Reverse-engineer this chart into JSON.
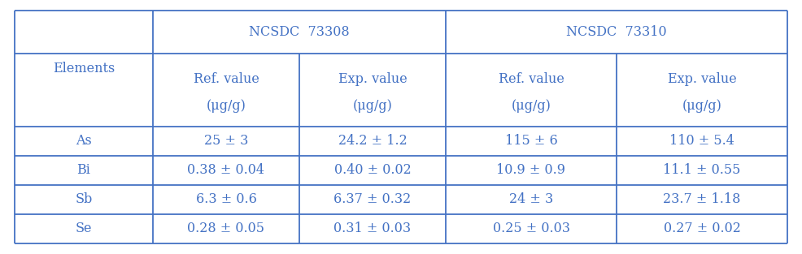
{
  "ncsdc1": "NCSDC  73308",
  "ncsdc2": "NCSDC  73310",
  "col_labels": [
    "Elements",
    "Ref. value",
    "Exp. value",
    "Ref. value",
    "Exp. value"
  ],
  "unit": "(μg/g)",
  "rows": [
    [
      "As",
      "25 ± 3",
      "24.2 ± 1.2",
      "115 ± 6",
      "110 ± 5.4"
    ],
    [
      "Bi",
      "0.38 ± 0.04",
      "0.40 ± 0.02",
      "10.9 ± 0.9",
      "11.1 ± 0.55"
    ],
    [
      "Sb",
      "6.3 ± 0.6",
      "6.37 ± 0.32",
      "24 ± 3",
      "23.7 ± 1.18"
    ],
    [
      "Se",
      "0.28 ± 0.05",
      "0.31 ± 0.03",
      "0.25 ± 0.03",
      "0.27 ± 0.02"
    ]
  ],
  "text_color": "#4472C4",
  "border_color": "#4472C4",
  "bg_color": "#FFFFFF",
  "fontsize": 11.5
}
